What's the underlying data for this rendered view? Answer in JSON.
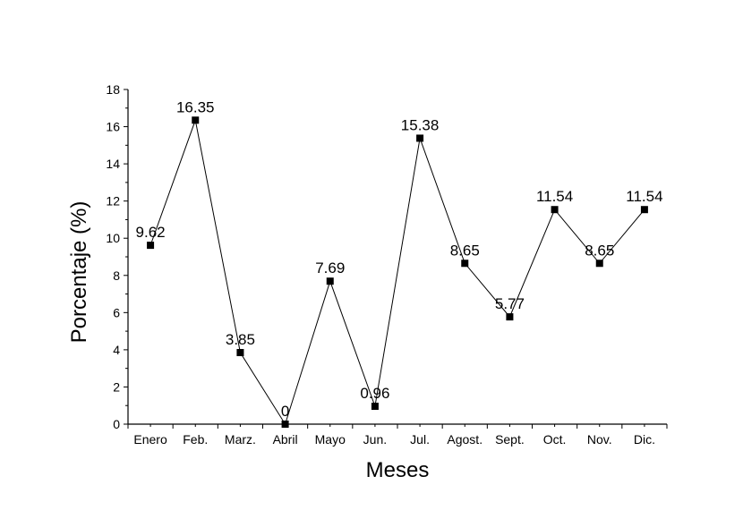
{
  "chart_data": {
    "type": "line",
    "categories": [
      "Enero",
      "Feb.",
      "Marz.",
      "Abril",
      "Mayo",
      "Jun.",
      "Jul.",
      "Agost.",
      "Sept.",
      "Oct.",
      "Nov.",
      "Dic."
    ],
    "values": [
      9.62,
      16.35,
      3.85,
      0,
      7.69,
      0.96,
      15.38,
      8.65,
      5.77,
      11.54,
      8.65,
      11.54
    ],
    "value_labels": [
      "9.62",
      "16.35",
      "3.85",
      "0",
      "7.69",
      "0.96",
      "15.38",
      "8.65",
      "5.77",
      "11.54",
      "8.65",
      "11.54"
    ],
    "xlabel": "Meses",
    "ylabel": "Porcentaje (%)",
    "ylim": [
      0,
      18
    ],
    "yticks": [
      "0",
      "2",
      "4",
      "6",
      "8",
      "10",
      "12",
      "14",
      "16",
      "18"
    ],
    "marker": "square",
    "grid": false,
    "colors": {
      "line": "#000000",
      "marker": "#000000",
      "axis": "#000000"
    }
  }
}
